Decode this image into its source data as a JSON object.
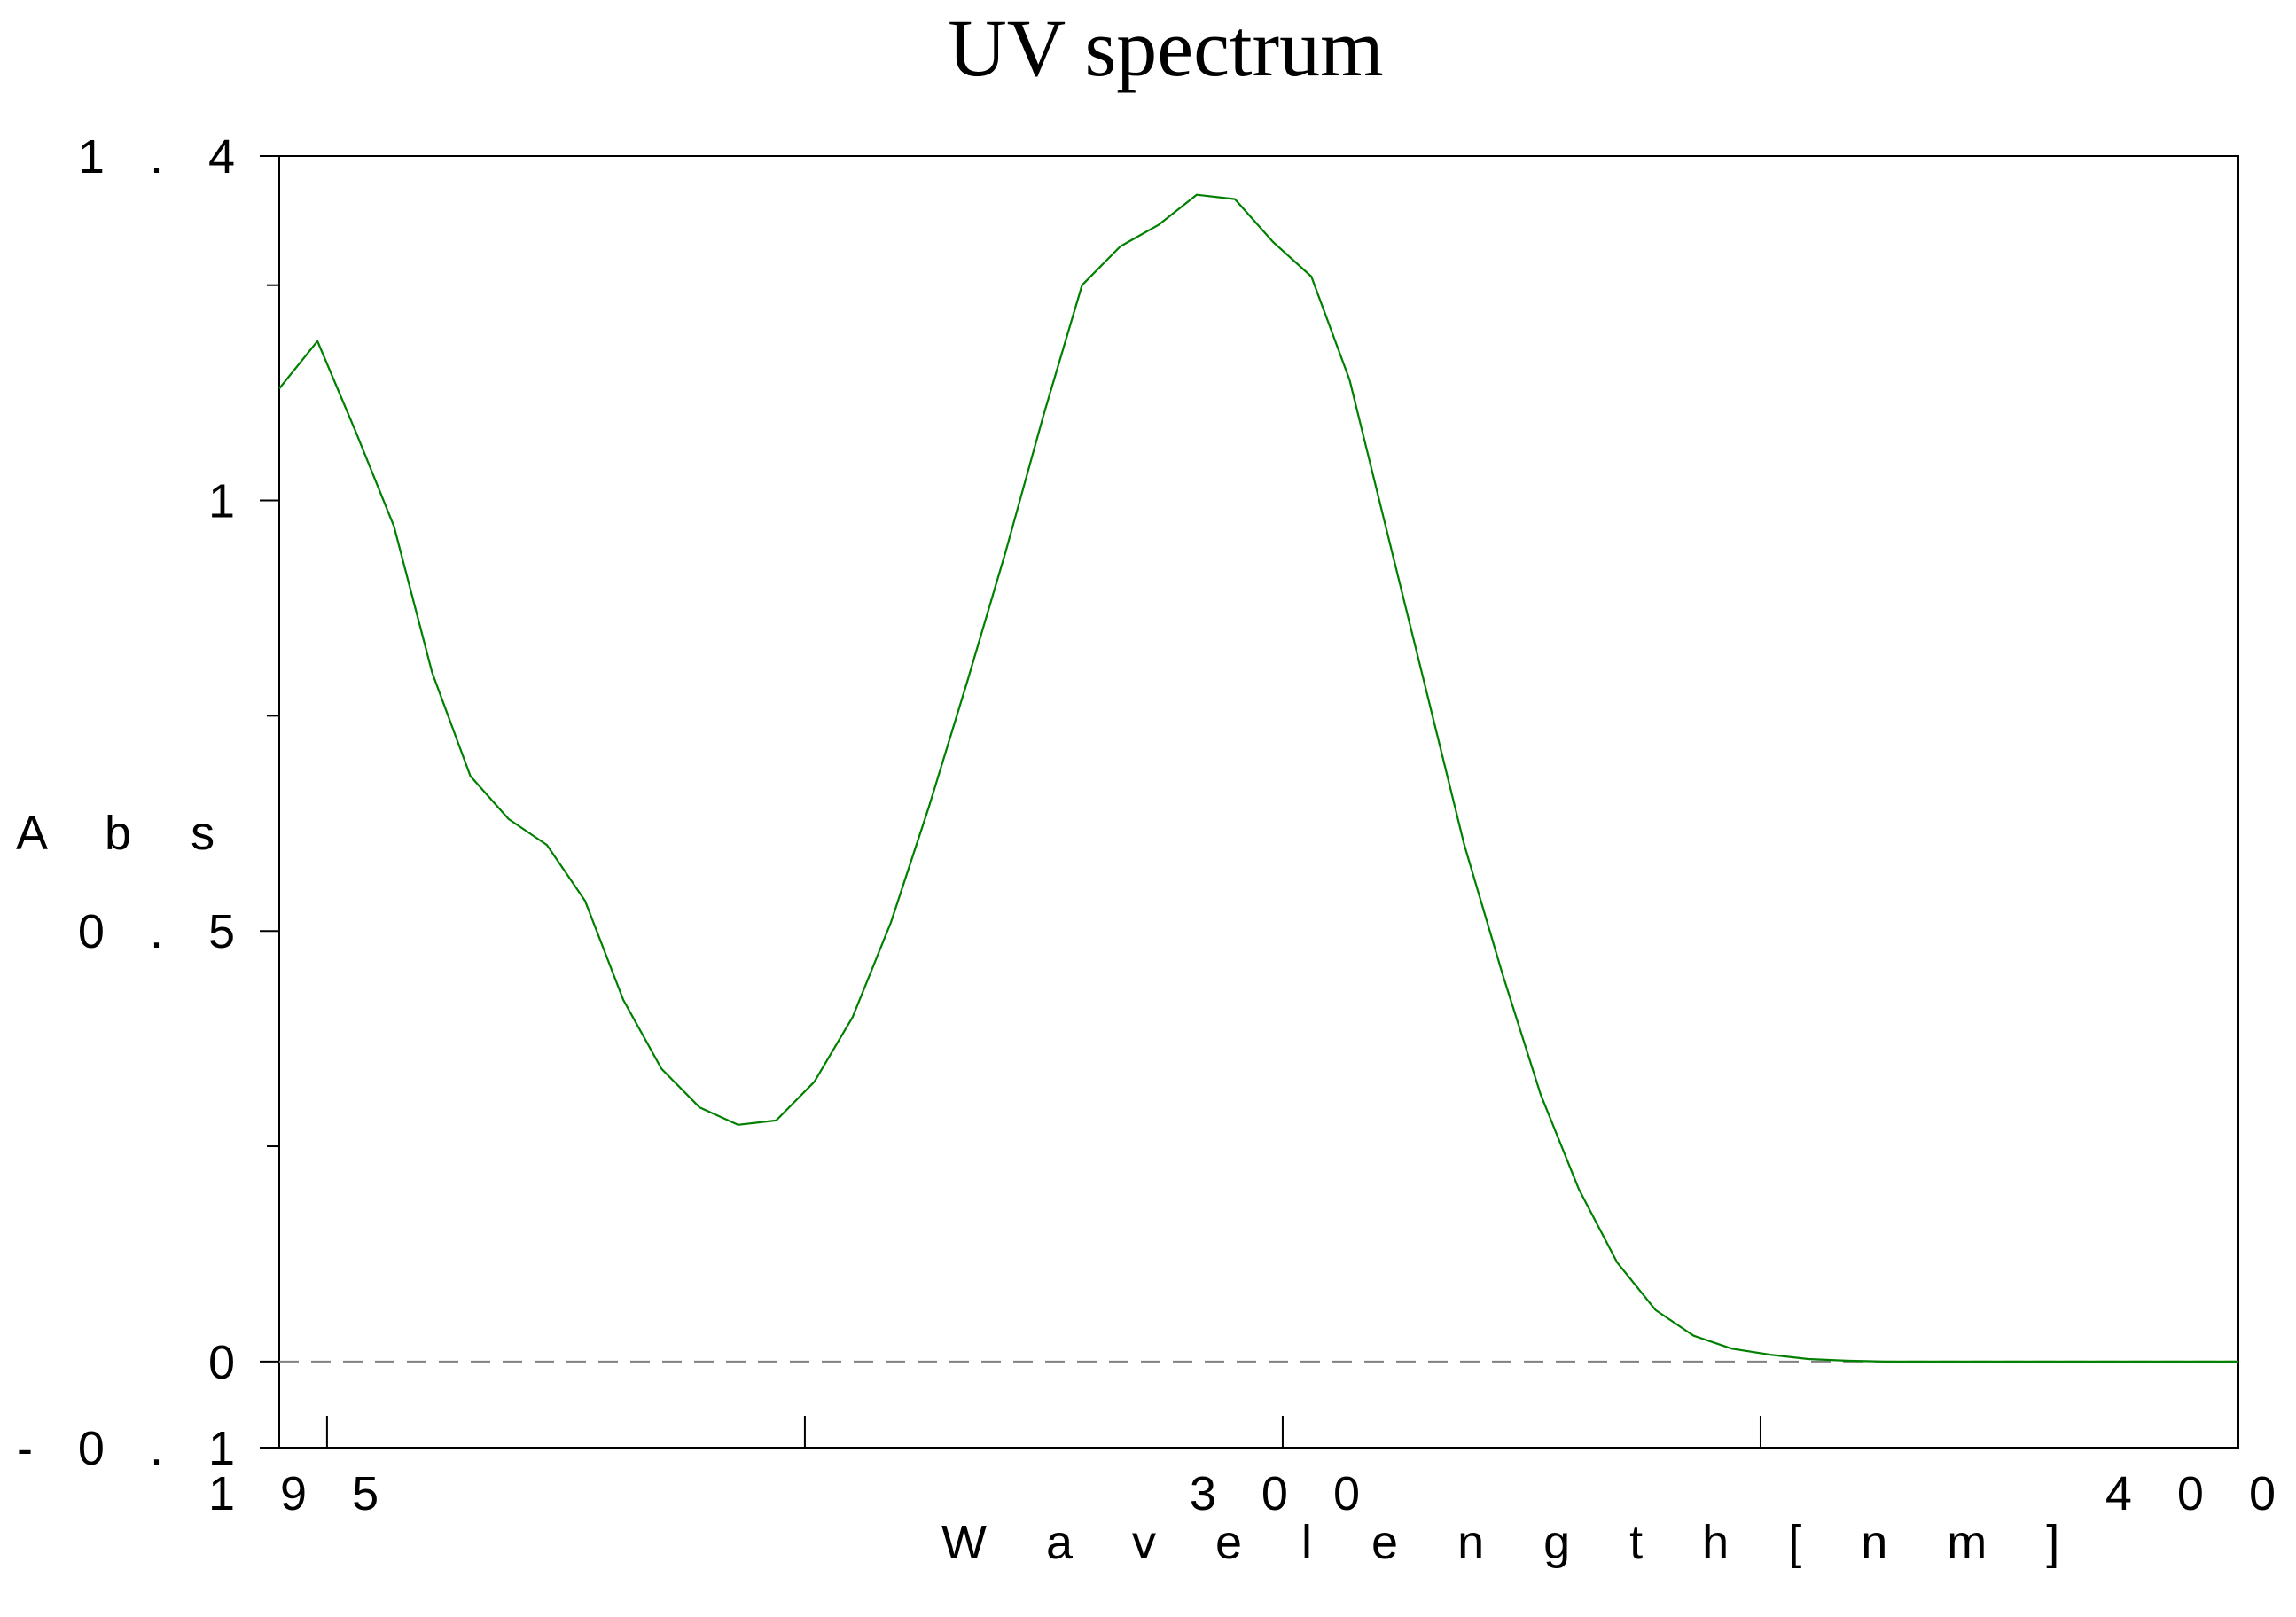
{
  "chart_data": {
    "type": "line",
    "title": "UV spectrum",
    "xlabel": "W a v e l e n g t h [ n m ]",
    "ylabel": "A b s",
    "xlim": [
      195,
      400
    ],
    "ylim": [
      -0.1,
      1.4
    ],
    "x_ticks": [
      {
        "value": 195,
        "label": "1 9 5"
      },
      {
        "value": 300,
        "label": "3 0 0"
      },
      {
        "value": 400,
        "label": "4 0 0"
      }
    ],
    "x_minor_ticks": [
      200,
      250,
      300,
      350
    ],
    "y_ticks": [
      {
        "value": 1.4,
        "label": "1 . 4"
      },
      {
        "value": 1.0,
        "label": "1"
      },
      {
        "value": 0.5,
        "label": "0 . 5"
      },
      {
        "value": 0.0,
        "label": "0"
      },
      {
        "value": -0.1,
        "label": "- 0 . 1"
      }
    ],
    "y_minor_ticks": [
      1.25,
      0.75,
      0.25
    ],
    "baseline": 0,
    "grid": false,
    "colors": {
      "line": "#008000",
      "frame": "#000000",
      "baseline": "#808080"
    },
    "series": [
      {
        "x": [
          195,
          199,
          203,
          207,
          211,
          215,
          219,
          223,
          227,
          231,
          235,
          239,
          243,
          247,
          251,
          255,
          259,
          263,
          267,
          271,
          275,
          279,
          283,
          287,
          291,
          295,
          299,
          303,
          307,
          311,
          315,
          319,
          323,
          327,
          331,
          335,
          339,
          343,
          347,
          351,
          355,
          359,
          363,
          367,
          371,
          375,
          379,
          383,
          387,
          391,
          395,
          400
        ],
        "y": [
          1.13,
          1.185,
          1.08,
          0.97,
          0.8,
          0.68,
          0.63,
          0.6,
          0.535,
          0.42,
          0.34,
          0.295,
          0.275,
          0.28,
          0.325,
          0.4,
          0.51,
          0.645,
          0.79,
          0.94,
          1.1,
          1.25,
          1.295,
          1.32,
          1.355,
          1.35,
          1.3,
          1.26,
          1.14,
          0.96,
          0.78,
          0.6,
          0.45,
          0.31,
          0.2,
          0.115,
          0.06,
          0.03,
          0.015,
          0.008,
          0.003,
          0.001,
          0.0,
          0.0,
          0.0,
          0.0,
          0.0,
          0.0,
          0.0,
          0.0,
          0.0,
          0.0
        ]
      }
    ]
  }
}
